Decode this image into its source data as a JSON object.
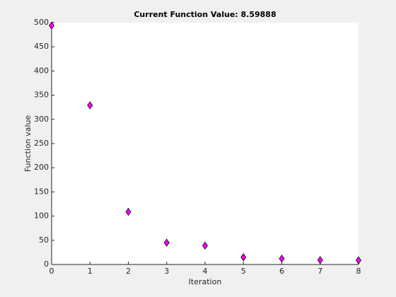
{
  "chart_data": {
    "type": "scatter",
    "title": "Current Function Value: 8.59888",
    "x_label": "Iteration",
    "y_label": "Function value",
    "x": [
      0,
      1,
      2,
      3,
      4,
      5,
      6,
      7,
      8
    ],
    "values": [
      494,
      329,
      109,
      45,
      39,
      15,
      12,
      9,
      8.59888
    ],
    "color": "#ff00ff",
    "xlim": [
      0,
      8
    ],
    "xticks": [
      0,
      1,
      2,
      3,
      4,
      5,
      6,
      7,
      8
    ],
    "ylim": [
      0,
      500
    ],
    "yticks": [
      0,
      50,
      100,
      150,
      200,
      250,
      300,
      350,
      400,
      450,
      500
    ],
    "grid": false
  }
}
